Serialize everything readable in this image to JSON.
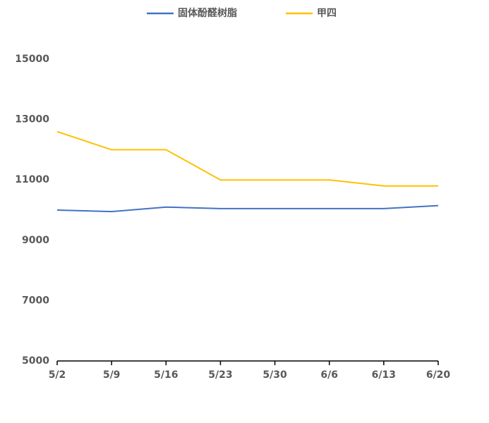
{
  "chart_data": {
    "type": "line",
    "categories": [
      "5/2",
      "5/9",
      "5/16",
      "5/23",
      "5/30",
      "6/6",
      "6/13",
      "6/20"
    ],
    "series": [
      {
        "name": "固体酚醛树脂",
        "color": "#4472c4",
        "values": [
          10000,
          9950,
          10100,
          10050,
          10050,
          10050,
          10050,
          10150
        ]
      },
      {
        "name": "甲四",
        "color": "#ffc000",
        "values": [
          12600,
          12000,
          12000,
          11000,
          11000,
          11000,
          10800,
          10800
        ]
      }
    ],
    "ylim": [
      5000,
      15000
    ],
    "yticks": [
      5000,
      7000,
      9000,
      11000,
      13000,
      15000
    ],
    "grid": false,
    "legend": "top"
  }
}
